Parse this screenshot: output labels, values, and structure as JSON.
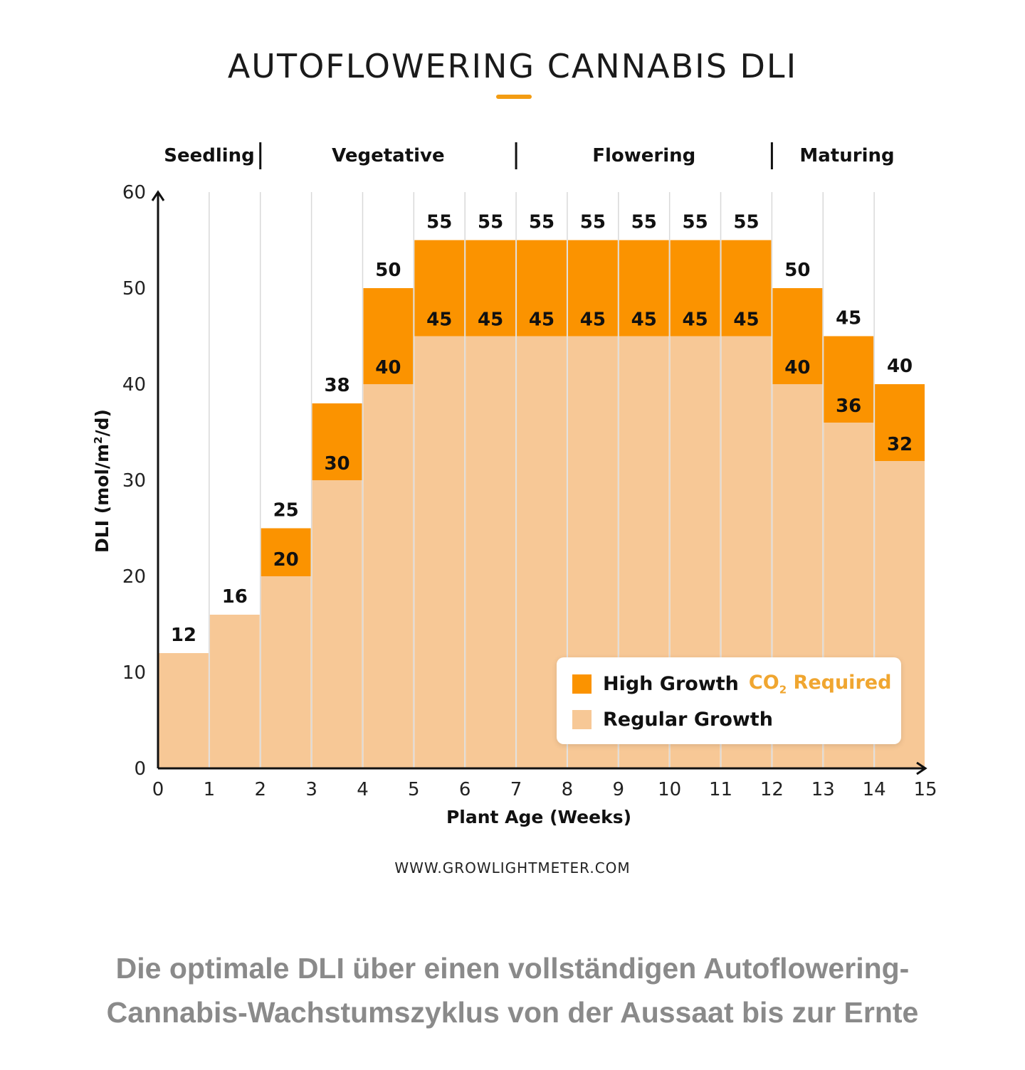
{
  "title": "AUTOFLOWERING CANNABIS DLI",
  "website": "WWW.GROWLIGHTMETER.COM",
  "caption": {
    "line1": "Die optimale DLI über einen vollständigen Autoflowering-",
    "line2": "Cannabis-Wachstumszyklus von der Aussaat bis zur Ernte"
  },
  "colors": {
    "high": "#fb9300",
    "regular": "#f7c896",
    "accent": "#f39c12",
    "co2_text": "#f0a630"
  },
  "legend": {
    "high_label": "High Growth",
    "co2_label": "CO",
    "co2_sub": "2",
    "required_label": "Required",
    "regular_label": "Regular Growth"
  },
  "chart_data": {
    "type": "bar",
    "title": "AUTOFLOWERING CANNABIS DLI",
    "xlabel": "Plant Age (Weeks)",
    "ylabel": "DLI (mol/m²/d)",
    "xlim": [
      0,
      15
    ],
    "ylim": [
      0,
      60
    ],
    "x_ticks": [
      "0",
      "1",
      "2",
      "3",
      "4",
      "5",
      "6",
      "7",
      "8",
      "9",
      "10",
      "11",
      "12",
      "13",
      "14",
      "15"
    ],
    "y_ticks": [
      "0",
      "10",
      "20",
      "30",
      "40",
      "50",
      "60"
    ],
    "grid": "vertical",
    "legend_position": "bottom-right",
    "phases": [
      {
        "name": "Seedling",
        "start": 0,
        "end": 2
      },
      {
        "name": "Vegetative",
        "start": 2,
        "end": 7
      },
      {
        "name": "Flowering",
        "start": 7,
        "end": 12
      },
      {
        "name": "Maturing",
        "start": 12,
        "end": 15
      }
    ],
    "weeks": [
      1,
      2,
      3,
      4,
      5,
      6,
      7,
      8,
      9,
      10,
      11,
      12,
      13,
      14,
      15
    ],
    "series": [
      {
        "name": "Regular Growth",
        "values": [
          12,
          16,
          20,
          30,
          40,
          45,
          45,
          45,
          45,
          45,
          45,
          45,
          40,
          36,
          32
        ]
      },
      {
        "name": "High Growth (CO2 Required)",
        "values": [
          null,
          null,
          25,
          38,
          50,
          55,
          55,
          55,
          55,
          55,
          55,
          55,
          50,
          45,
          40
        ]
      }
    ],
    "regular_labels": [
      null,
      null,
      "20",
      "30",
      "40",
      "45",
      "45",
      "45",
      "45",
      "45",
      "45",
      "45",
      "40",
      "36",
      "32"
    ],
    "top_labels": [
      "12",
      "16",
      "25",
      "38",
      "50",
      "55",
      "55",
      "55",
      "55",
      "55",
      "55",
      "55",
      "50",
      "45",
      "40"
    ]
  }
}
